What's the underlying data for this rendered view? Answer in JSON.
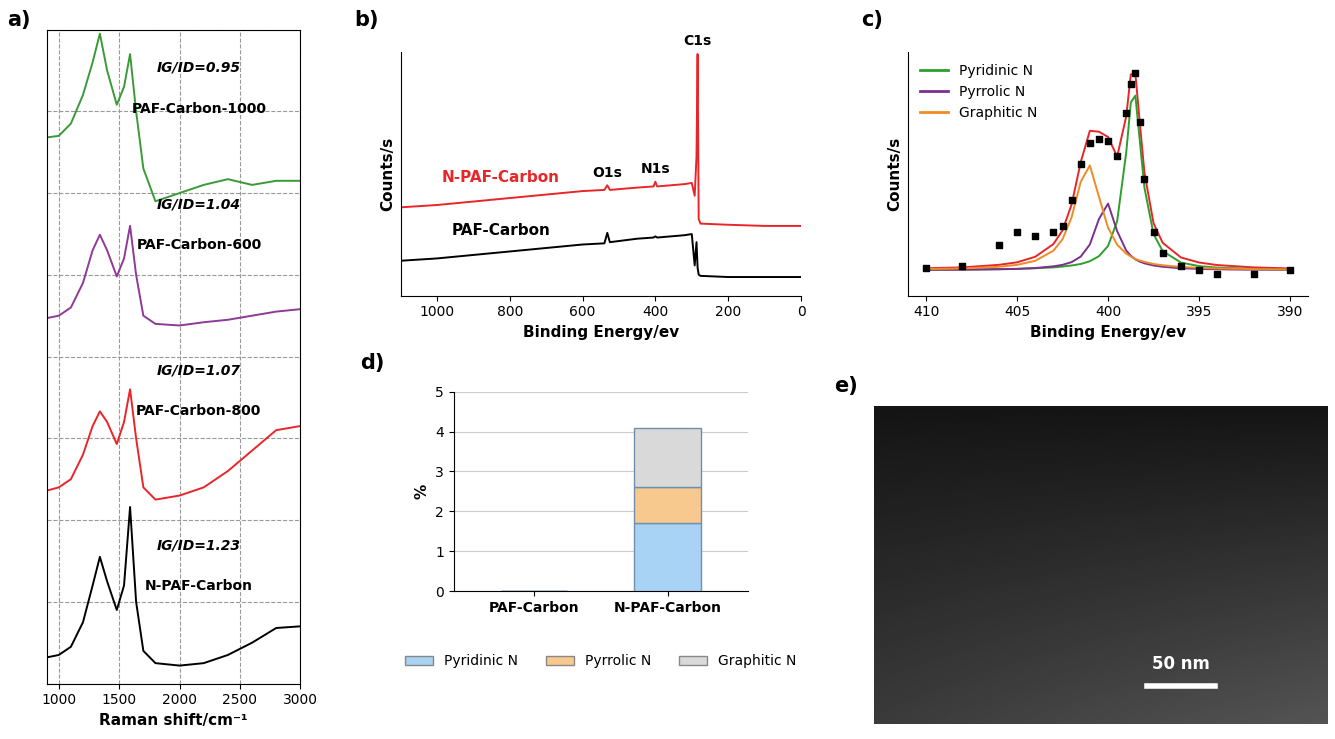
{
  "chart_data": [
    {
      "panel": "a)",
      "type": "line",
      "xlabel": "Raman shift/cm⁻¹",
      "x": [
        900,
        1000,
        1100,
        1200,
        1280,
        1340,
        1400,
        1480,
        1540,
        1590,
        1640,
        1700,
        1800,
        2000,
        2200,
        2400,
        2600,
        2800,
        3000
      ],
      "xlim": [
        900,
        3000
      ],
      "xticks": [
        1000,
        1500,
        2000,
        2500,
        3000
      ],
      "ylim": [
        0,
        8
      ],
      "yticks": [
        0,
        1,
        2,
        3,
        4,
        5,
        6,
        7,
        8
      ],
      "grid": true,
      "tick_labels": "x",
      "series": [
        {
          "name": "PAF-Carbon-1000",
          "annotation": "IG/ID=0.95",
          "color": "#3a9a3a",
          "values": [
            6.68,
            6.7,
            6.85,
            7.2,
            7.6,
            7.95,
            7.5,
            7.08,
            7.3,
            7.7,
            7.0,
            6.3,
            5.9,
            6.0,
            6.1,
            6.17,
            6.1,
            6.15,
            6.15
          ]
        },
        {
          "name": "PAF-Carbon-600",
          "annotation": "IG/ID=1.04",
          "color": "#8e3a96",
          "values": [
            4.47,
            4.5,
            4.6,
            4.9,
            5.3,
            5.49,
            5.3,
            4.98,
            5.2,
            5.6,
            5.0,
            4.5,
            4.4,
            4.38,
            4.42,
            4.45,
            4.5,
            4.55,
            4.58
          ]
        },
        {
          "name": "PAF-Carbon-800",
          "annotation": "IG/ID=1.07",
          "color": "#e8262a",
          "values": [
            2.36,
            2.4,
            2.5,
            2.8,
            3.15,
            3.33,
            3.2,
            2.93,
            3.2,
            3.6,
            3.0,
            2.4,
            2.25,
            2.3,
            2.4,
            2.6,
            2.85,
            3.1,
            3.15
          ]
        },
        {
          "name": "N-PAF-Carbon",
          "annotation": "IG/ID=1.23",
          "color": "#000000",
          "values": [
            0.32,
            0.35,
            0.45,
            0.75,
            1.2,
            1.55,
            1.25,
            0.9,
            1.2,
            2.16,
            1.0,
            0.4,
            0.25,
            0.22,
            0.25,
            0.35,
            0.5,
            0.68,
            0.7
          ]
        }
      ]
    },
    {
      "panel": "b)",
      "type": "line",
      "xlabel": "Binding Energy/ev",
      "ylabel": "Counts/s",
      "x": [
        1100,
        1000,
        900,
        800,
        700,
        600,
        540,
        532,
        525,
        450,
        405,
        400,
        395,
        320,
        300,
        292,
        287,
        284,
        281,
        276,
        200,
        100,
        0
      ],
      "xlim": [
        1100,
        0
      ],
      "xticks": [
        1000,
        800,
        600,
        400,
        200,
        0
      ],
      "ylim": [
        0,
        10.5
      ],
      "tick_labels": "x",
      "series": [
        {
          "name": "N-PAF-Carbon",
          "color": "#e8262a",
          "values": [
            3.8,
            3.9,
            4.05,
            4.2,
            4.35,
            4.5,
            4.55,
            4.75,
            4.55,
            4.65,
            4.7,
            4.9,
            4.7,
            4.8,
            4.85,
            4.3,
            6.0,
            10.4,
            3.3,
            3.1,
            3.05,
            3.0,
            3.0
          ]
        },
        {
          "name": "PAF-Carbon",
          "color": "#000000",
          "values": [
            1.5,
            1.6,
            1.75,
            1.9,
            2.05,
            2.2,
            2.25,
            2.7,
            2.3,
            2.45,
            2.5,
            2.55,
            2.5,
            2.6,
            2.65,
            1.3,
            2.3,
            1.2,
            0.9,
            0.85,
            0.8,
            0.8,
            0.8
          ]
        }
      ],
      "annotations": [
        {
          "text": "C1s",
          "x": 284
        },
        {
          "text": "O1s",
          "x": 532
        },
        {
          "text": "N1s",
          "x": 400
        }
      ]
    },
    {
      "panel": "c)",
      "type": "line",
      "xlabel": "Binding Energy/ev",
      "ylabel": "Counts/s",
      "x": [
        410,
        408,
        406,
        405,
        404,
        403,
        402.5,
        402,
        401.5,
        401,
        400.5,
        400,
        399.5,
        399,
        398.75,
        398.5,
        398.25,
        398,
        397.5,
        397,
        396,
        395,
        394,
        392,
        390
      ],
      "xlim": [
        411,
        389
      ],
      "xticks": [
        410,
        405,
        400,
        395,
        390
      ],
      "ylim": [
        0,
        1.15
      ],
      "tick_labels": "x",
      "legend": "upper left",
      "series": [
        {
          "type": "scatter",
          "marker": "square",
          "color": "#000000",
          "values": [
            0.13,
            0.14,
            0.24,
            0.3,
            0.28,
            0.3,
            0.33,
            0.45,
            0.62,
            0.72,
            0.74,
            0.73,
            0.66,
            0.86,
            1.0,
            1.05,
            0.82,
            0.55,
            0.3,
            0.2,
            0.14,
            0.12,
            0.1,
            0.1,
            0.12
          ]
        },
        {
          "type": "line",
          "color": "#e8262a",
          "values": [
            0.129,
            0.133,
            0.145,
            0.157,
            0.183,
            0.243,
            0.308,
            0.43,
            0.63,
            0.777,
            0.773,
            0.748,
            0.655,
            0.846,
            1.043,
            1.047,
            0.81,
            0.579,
            0.341,
            0.249,
            0.18,
            0.156,
            0.144,
            0.133,
            0.128
          ]
        },
        {
          "name": "Pyridinic N",
          "type": "line",
          "color": "#2ca02c",
          "values": [
            0.122,
            0.123,
            0.125,
            0.126,
            0.129,
            0.133,
            0.137,
            0.142,
            0.149,
            0.162,
            0.186,
            0.234,
            0.351,
            0.676,
            0.911,
            0.943,
            0.725,
            0.508,
            0.29,
            0.21,
            0.156,
            0.139,
            0.132,
            0.126,
            0.123
          ]
        },
        {
          "name": "Pyrrolic N",
          "type": "line",
          "color": "#7b2f8e",
          "values": [
            0.122,
            0.122,
            0.124,
            0.126,
            0.13,
            0.138,
            0.145,
            0.158,
            0.184,
            0.241,
            0.361,
            0.434,
            0.304,
            0.212,
            0.188,
            0.171,
            0.16,
            0.152,
            0.142,
            0.136,
            0.129,
            0.126,
            0.124,
            0.122,
            0.122
          ]
        },
        {
          "name": "Graphitic N",
          "type": "line",
          "color": "#f08a24",
          "values": [
            0.125,
            0.128,
            0.136,
            0.145,
            0.164,
            0.212,
            0.266,
            0.37,
            0.537,
            0.614,
            0.466,
            0.32,
            0.24,
            0.198,
            0.184,
            0.173,
            0.165,
            0.159,
            0.149,
            0.143,
            0.135,
            0.131,
            0.128,
            0.125,
            0.123
          ]
        }
      ]
    },
    {
      "panel": "d)",
      "type": "bar",
      "stacked": true,
      "ylabel": "%",
      "categories": [
        "PAF-Carbon",
        "N-PAF-Carbon"
      ],
      "ylim": [
        0,
        5
      ],
      "yticks": [
        0,
        1,
        2,
        3,
        4,
        5
      ],
      "grid": true,
      "legend": "lower center",
      "series": [
        {
          "name": "Pyridinic N",
          "color": "#a9d3f5",
          "values": [
            0,
            1.7
          ]
        },
        {
          "name": "Pyrrolic N",
          "color": "#f8c98f",
          "values": [
            0,
            0.9
          ]
        },
        {
          "name": "Graphitic N",
          "color": "#d9d9d9",
          "values": [
            0,
            1.5
          ]
        }
      ]
    },
    {
      "panel": "e)",
      "type": "image",
      "scale_bar": "50 nm"
    }
  ]
}
